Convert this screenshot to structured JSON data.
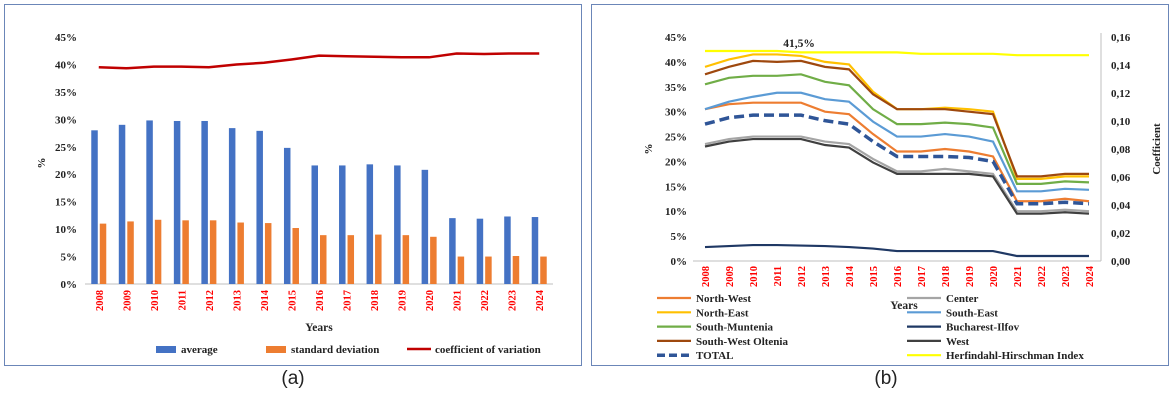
{
  "captions": {
    "a": "(a)",
    "b": "(b)"
  },
  "chart_data": [
    {
      "type": "bar",
      "panel": "a",
      "title": "",
      "xlabel": "Years",
      "ylabel": "%",
      "ylim": [
        0,
        45
      ],
      "yticks": [
        "0%",
        "5%",
        "10%",
        "15%",
        "20%",
        "25%",
        "30%",
        "35%",
        "40%",
        "45%"
      ],
      "categories": [
        "2008",
        "2009",
        "2010",
        "2011",
        "2012",
        "2013",
        "2014",
        "2015",
        "2016",
        "2017",
        "2018",
        "2019",
        "2020",
        "2021",
        "2022",
        "2023",
        "2024"
      ],
      "series": [
        {
          "name": "average",
          "kind": "bar",
          "color": "#4472c4",
          "values": [
            28.0,
            29.0,
            29.8,
            29.7,
            29.7,
            28.4,
            27.9,
            24.8,
            21.6,
            21.6,
            21.8,
            21.6,
            20.8,
            12.0,
            11.9,
            12.3,
            12.2
          ]
        },
        {
          "name": "standard deviation",
          "kind": "bar",
          "color": "#ed7d31",
          "values": [
            11.0,
            11.4,
            11.7,
            11.6,
            11.6,
            11.2,
            11.1,
            10.2,
            8.9,
            8.9,
            9.0,
            8.9,
            8.6,
            5.0,
            5.0,
            5.1,
            5.0
          ]
        },
        {
          "name": "coefficient of variation",
          "kind": "line",
          "color": "#c00000",
          "values": [
            39.5,
            39.3,
            39.6,
            39.6,
            39.5,
            40.0,
            40.3,
            40.9,
            41.6,
            41.5,
            41.4,
            41.3,
            41.3,
            42.0,
            41.9,
            42.0,
            42.0
          ]
        }
      ],
      "legend": "bottom",
      "grid": false,
      "tick_label_color": "#ff0000"
    },
    {
      "type": "line",
      "panel": "b",
      "title": "",
      "xlabel": "Years",
      "ylabel": "%",
      "ylabel_right": "Coefficient",
      "ylim": [
        0,
        45
      ],
      "ylim_right": [
        0,
        0.16
      ],
      "yticks": [
        "0%",
        "5%",
        "10%",
        "15%",
        "20%",
        "25%",
        "30%",
        "35%",
        "40%",
        "45%"
      ],
      "yticks_right": [
        "0,00",
        "0,02",
        "0,04",
        "0,06",
        "0,08",
        "0,10",
        "0,12",
        "0,14",
        "0,16"
      ],
      "annotation": "41,5%",
      "annotation_x": "2012",
      "categories": [
        "2008",
        "2009",
        "2010",
        "2011",
        "2012",
        "2013",
        "2014",
        "2015",
        "2016",
        "2017",
        "2018",
        "2019",
        "2020",
        "2021",
        "2022",
        "2023",
        "2024"
      ],
      "series": [
        {
          "name": "North-West",
          "color": "#ed7d31",
          "axis": "left",
          "values": [
            30.5,
            31.5,
            31.8,
            31.8,
            31.8,
            30.0,
            29.5,
            25.5,
            22.0,
            22.0,
            22.5,
            22.0,
            21.0,
            12.0,
            12.0,
            12.5,
            12.0
          ]
        },
        {
          "name": "Center",
          "color": "#a5a5a5",
          "axis": "left",
          "values": [
            23.5,
            24.5,
            25.0,
            25.0,
            25.0,
            24.0,
            23.5,
            20.5,
            18.0,
            18.0,
            18.5,
            18.0,
            17.5,
            10.0,
            10.0,
            10.3,
            10.0
          ]
        },
        {
          "name": "North-East",
          "color": "#ffc000",
          "axis": "left",
          "values": [
            39.0,
            40.5,
            41.5,
            41.5,
            41.2,
            40.0,
            39.5,
            34.0,
            30.5,
            30.5,
            30.8,
            30.5,
            30.0,
            16.5,
            16.5,
            17.0,
            17.0
          ]
        },
        {
          "name": "South-East",
          "color": "#5b9bd5",
          "axis": "left",
          "values": [
            30.5,
            32.0,
            33.0,
            33.8,
            33.8,
            32.5,
            32.0,
            28.0,
            25.0,
            25.0,
            25.5,
            25.0,
            24.0,
            14.0,
            14.0,
            14.5,
            14.3
          ]
        },
        {
          "name": "South-Muntenia",
          "color": "#70ad47",
          "axis": "left",
          "values": [
            35.5,
            36.8,
            37.2,
            37.2,
            37.5,
            36.0,
            35.3,
            30.5,
            27.5,
            27.5,
            27.8,
            27.5,
            26.8,
            15.5,
            15.5,
            16.0,
            15.8
          ]
        },
        {
          "name": "Bucharest-Ilfov",
          "color": "#1f3864",
          "axis": "left",
          "values": [
            2.8,
            3.0,
            3.2,
            3.2,
            3.1,
            3.0,
            2.8,
            2.5,
            2.0,
            2.0,
            2.0,
            2.0,
            2.0,
            1.0,
            1.0,
            1.0,
            1.0
          ]
        },
        {
          "name": "South-West Oltenia",
          "color": "#9e480e",
          "axis": "left",
          "values": [
            37.5,
            39.0,
            40.2,
            40.0,
            40.2,
            39.0,
            38.5,
            33.5,
            30.5,
            30.5,
            30.5,
            30.0,
            29.5,
            17.0,
            17.0,
            17.5,
            17.5
          ]
        },
        {
          "name": "West",
          "color": "#404040",
          "axis": "left",
          "values": [
            23.0,
            24.0,
            24.5,
            24.5,
            24.5,
            23.3,
            22.8,
            19.8,
            17.5,
            17.5,
            17.5,
            17.5,
            17.0,
            9.5,
            9.5,
            9.8,
            9.5
          ]
        },
        {
          "name": "TOTAL",
          "color": "#2f5597",
          "axis": "left",
          "dashed": true,
          "values": [
            27.5,
            28.8,
            29.3,
            29.3,
            29.3,
            28.2,
            27.5,
            24.0,
            21.0,
            21.0,
            21.0,
            20.8,
            20.0,
            11.5,
            11.5,
            11.8,
            11.5
          ]
        },
        {
          "name": "Herfindahl-Hirschman Index",
          "color": "#ffff00",
          "axis": "right",
          "values": [
            0.15,
            0.15,
            0.15,
            0.15,
            0.149,
            0.149,
            0.149,
            0.149,
            0.149,
            0.148,
            0.148,
            0.148,
            0.148,
            0.147,
            0.147,
            0.147,
            0.147
          ]
        }
      ],
      "legend": "bottom",
      "grid": false,
      "tick_label_color": "#ff0000"
    }
  ]
}
